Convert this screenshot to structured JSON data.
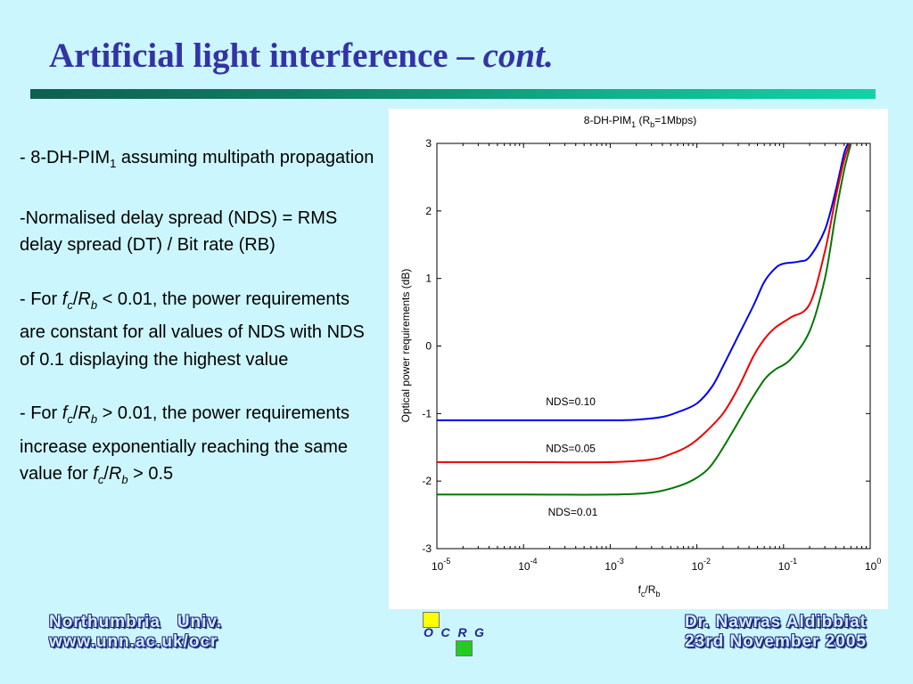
{
  "slide": {
    "title_main": "Artificial light interference – ",
    "title_italic": "cont."
  },
  "bullets": {
    "b1_pre": "- 8-DH-PIM",
    "b1_sub": "1",
    "b1_post": " assuming multipath propagation",
    "b2": "-Normalised delay spread (NDS) = RMS delay spread (DT) / Bit rate (RB)",
    "b3_pre": "- For ",
    "b3_f": "f",
    "b3_c": "c",
    "b3_slash": "/",
    "b3_R": "R",
    "b3_b": "b",
    "b3_post": " < 0.01, the power requirements are constant for all values of NDS with NDS of 0.1 displaying the highest value",
    "b4_pre": "- For ",
    "b4_f": "f",
    "b4_c": "c",
    "b4_slash": "/",
    "b4_R": "R",
    "b4_b": "b",
    "b4_post": " > 0.01, the power requirements increase exponentially reaching the same value for ",
    "b4_f2": "f",
    "b4_c2": "c",
    "b4_slash2": "/",
    "b4_R2": "R",
    "b4_b2": "b",
    "b4_end": " > 0.5"
  },
  "chart_data": {
    "type": "line",
    "title": "8-DH-PIM1 (Rb=1Mbps)",
    "title_parts": {
      "a": "8-DH-PIM",
      "a_sub": "1",
      "b": " (R",
      "b_sub": "b",
      "c": "=1Mbps)"
    },
    "xlabel": "fc/Rb",
    "xlabel_parts": {
      "a": "f",
      "a_sub": "c",
      "b": "/R",
      "b_sub": "b"
    },
    "ylabel": "Optical power requirements (dB)",
    "x_scale": "log",
    "xlim": [
      1e-05,
      1
    ],
    "ylim": [
      -3,
      3
    ],
    "x_ticks": [
      {
        "value": 1e-05,
        "base": "10",
        "exp": "-5"
      },
      {
        "value": 0.0001,
        "base": "10",
        "exp": "-4"
      },
      {
        "value": 0.001,
        "base": "10",
        "exp": "-3"
      },
      {
        "value": 0.01,
        "base": "10",
        "exp": "-2"
      },
      {
        "value": 0.1,
        "base": "10",
        "exp": "-1"
      },
      {
        "value": 1,
        "base": "10",
        "exp": "0"
      }
    ],
    "y_ticks": [
      3,
      2,
      1,
      0,
      -1,
      -2,
      -3
    ],
    "series": [
      {
        "name": "NDS=0.10",
        "color": "#0000ee",
        "points": [
          [
            1e-05,
            -1.1
          ],
          [
            0.0001,
            -1.1
          ],
          [
            0.001,
            -1.1
          ],
          [
            0.002,
            -1.09
          ],
          [
            0.004,
            -1.05
          ],
          [
            0.006,
            -0.98
          ],
          [
            0.01,
            -0.85
          ],
          [
            0.015,
            -0.6
          ],
          [
            0.02,
            -0.3
          ],
          [
            0.03,
            0.15
          ],
          [
            0.045,
            0.6
          ],
          [
            0.06,
            0.95
          ],
          [
            0.08,
            1.15
          ],
          [
            0.1,
            1.22
          ],
          [
            0.15,
            1.25
          ],
          [
            0.2,
            1.32
          ],
          [
            0.3,
            1.72
          ],
          [
            0.4,
            2.3
          ],
          [
            0.5,
            2.85
          ],
          [
            0.56,
            3.0
          ]
        ]
      },
      {
        "name": "NDS=0.05",
        "color": "#ee0000",
        "points": [
          [
            1e-05,
            -1.72
          ],
          [
            0.0001,
            -1.72
          ],
          [
            0.001,
            -1.72
          ],
          [
            0.003,
            -1.68
          ],
          [
            0.005,
            -1.6
          ],
          [
            0.008,
            -1.48
          ],
          [
            0.012,
            -1.3
          ],
          [
            0.02,
            -1.0
          ],
          [
            0.03,
            -0.62
          ],
          [
            0.045,
            -0.15
          ],
          [
            0.06,
            0.1
          ],
          [
            0.08,
            0.27
          ],
          [
            0.12,
            0.42
          ],
          [
            0.2,
            0.62
          ],
          [
            0.3,
            1.4
          ],
          [
            0.4,
            2.2
          ],
          [
            0.5,
            2.75
          ],
          [
            0.58,
            3.0
          ]
        ]
      },
      {
        "name": "NDS=0.01",
        "color": "#007700",
        "points": [
          [
            1e-05,
            -2.2
          ],
          [
            0.0001,
            -2.2
          ],
          [
            0.001,
            -2.2
          ],
          [
            0.003,
            -2.17
          ],
          [
            0.006,
            -2.08
          ],
          [
            0.01,
            -1.95
          ],
          [
            0.015,
            -1.75
          ],
          [
            0.025,
            -1.3
          ],
          [
            0.04,
            -0.85
          ],
          [
            0.06,
            -0.5
          ],
          [
            0.08,
            -0.35
          ],
          [
            0.12,
            -0.2
          ],
          [
            0.2,
            0.22
          ],
          [
            0.3,
            1.0
          ],
          [
            0.4,
            1.95
          ],
          [
            0.5,
            2.6
          ],
          [
            0.6,
            3.0
          ]
        ]
      }
    ],
    "annotations": [
      "NDS=0.10",
      "NDS=0.05",
      "NDS=0.01"
    ],
    "grid": false
  },
  "footer": {
    "left_line1": "Northumbria   Univ.",
    "left_line2": "www.unn.ac.uk/ocr",
    "right_line1": "Dr. Nawras Aldibbiat",
    "right_line2": "23rd November 2005"
  },
  "logo": {
    "letters": [
      "O",
      "C",
      "R",
      "G"
    ],
    "colors": [
      "#ffff00",
      "#22cc22"
    ]
  }
}
